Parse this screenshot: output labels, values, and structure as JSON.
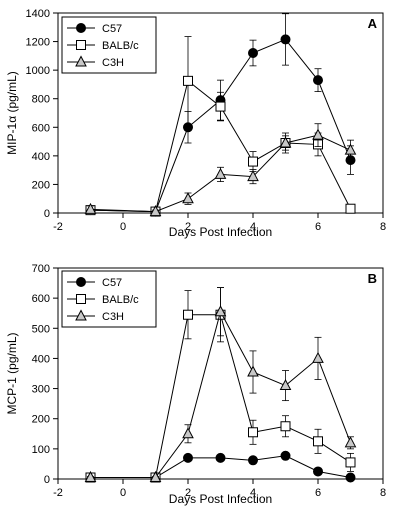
{
  "chart_data": [
    {
      "type": "line",
      "panel_label": "A",
      "title": "",
      "xlabel": "Days Post Infection",
      "ylabel": "MIP-1α (pg/mL)",
      "xlim": [
        -2,
        8
      ],
      "ylim": [
        0,
        1400
      ],
      "xticks": [
        -2,
        0,
        2,
        4,
        6,
        8
      ],
      "yticks": [
        0,
        200,
        400,
        600,
        800,
        1000,
        1200,
        1400
      ],
      "grid": false,
      "legend_position": "top-left",
      "x": [
        -1,
        1,
        2,
        3,
        4,
        5,
        6,
        7
      ],
      "series": [
        {
          "name": "C57",
          "marker": "filled-circle",
          "values": [
            20,
            10,
            600,
            790,
            1120,
            1215,
            930,
            370
          ],
          "errors": [
            10,
            5,
            110,
            140,
            90,
            180,
            80,
            100
          ]
        },
        {
          "name": "BALB/c",
          "marker": "open-square",
          "values": [
            20,
            10,
            925,
            745,
            360,
            490,
            480,
            30
          ],
          "errors": [
            10,
            5,
            310,
            100,
            70,
            50,
            80,
            10
          ]
        },
        {
          "name": "C3H",
          "marker": "open-triangle",
          "values": [
            25,
            10,
            100,
            270,
            255,
            490,
            545,
            440
          ],
          "errors": [
            25,
            10,
            40,
            50,
            50,
            70,
            80,
            70
          ]
        }
      ]
    },
    {
      "type": "line",
      "panel_label": "B",
      "title": "",
      "xlabel": "Days Post Infection",
      "ylabel": "MCP-1 (pg/mL)",
      "xlim": [
        -2,
        8
      ],
      "ylim": [
        0,
        700
      ],
      "xticks": [
        -2,
        0,
        2,
        4,
        6,
        8
      ],
      "yticks": [
        0,
        100,
        200,
        300,
        400,
        500,
        600,
        700
      ],
      "grid": false,
      "legend_position": "top-left",
      "x": [
        -1,
        1,
        2,
        3,
        4,
        5,
        6,
        7
      ],
      "series": [
        {
          "name": "C57",
          "marker": "filled-circle",
          "values": [
            5,
            5,
            70,
            70,
            62,
            77,
            25,
            5
          ],
          "errors": [
            2,
            2,
            5,
            5,
            5,
            5,
            5,
            3
          ]
        },
        {
          "name": "BALB/c",
          "marker": "open-square",
          "values": [
            5,
            5,
            545,
            545,
            155,
            175,
            125,
            55
          ],
          "errors": [
            3,
            3,
            80,
            90,
            40,
            35,
            40,
            30
          ]
        },
        {
          "name": "C3H",
          "marker": "open-triangle",
          "values": [
            5,
            5,
            150,
            555,
            355,
            310,
            400,
            120
          ],
          "errors": [
            3,
            3,
            30,
            80,
            70,
            50,
            70,
            20
          ]
        }
      ]
    }
  ]
}
